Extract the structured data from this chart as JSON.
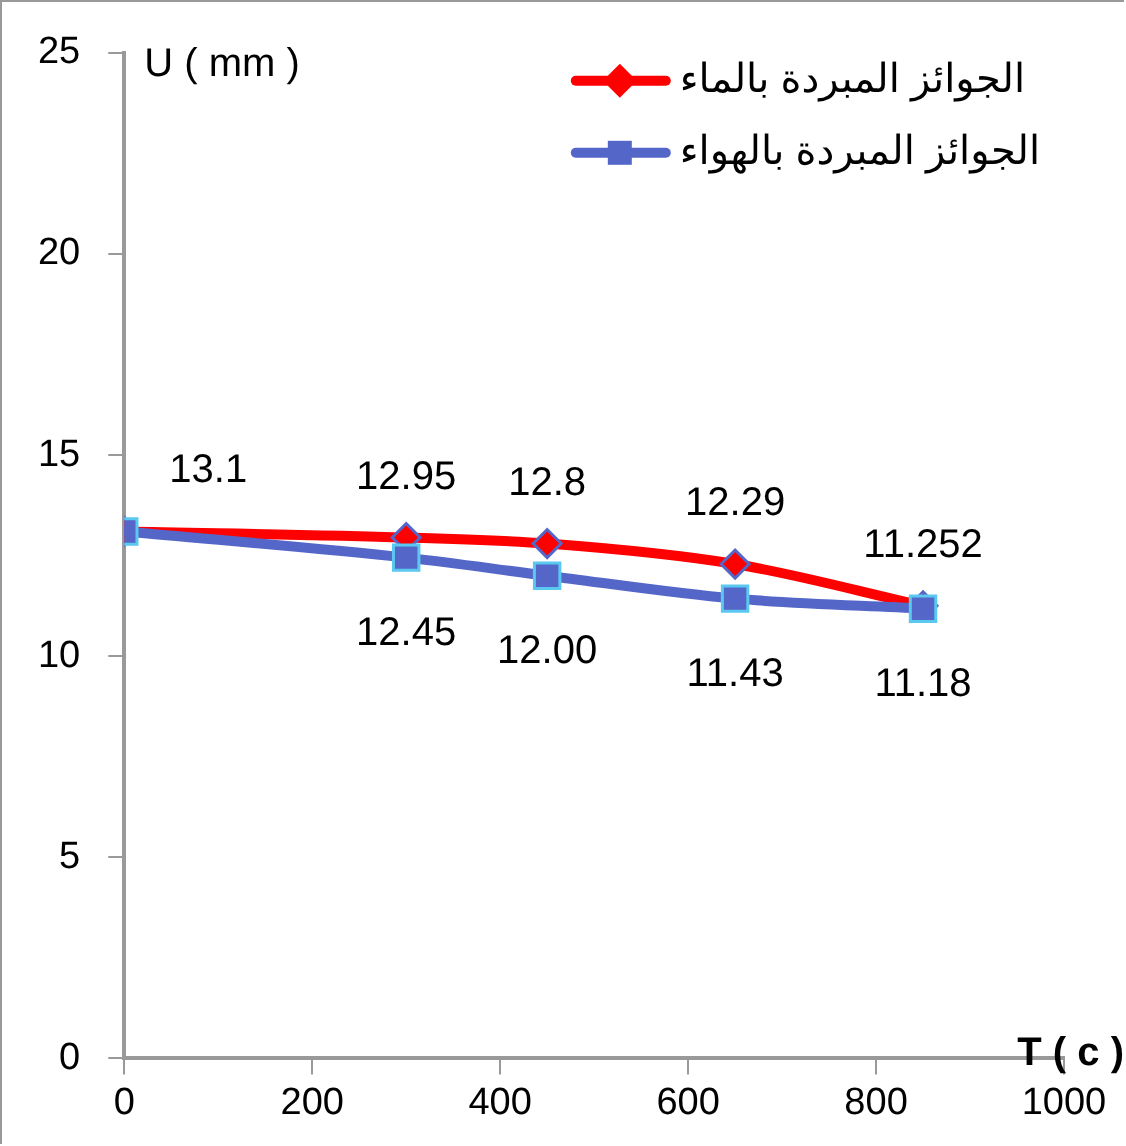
{
  "chart_data": {
    "type": "line",
    "xlabel": "T ( c )",
    "ylabel": "U ( mm )",
    "x": [
      0,
      300,
      450,
      650,
      850
    ],
    "series": [
      {
        "name": "الجوائز المبردة بالماء",
        "color": "#ff0000",
        "marker": "diamond",
        "values": [
          13.1,
          12.95,
          12.8,
          12.29,
          11.252
        ],
        "value_labels": [
          "13.1",
          "12.95",
          "12.8",
          "12.29",
          "11.252"
        ]
      },
      {
        "name": "الجوائز المبردة بالهواء",
        "color": "#5467c9",
        "marker": "square",
        "values": [
          13.1,
          12.45,
          12.0,
          11.43,
          11.18
        ],
        "value_labels": [
          null,
          "12.45",
          "12.00",
          "11.43",
          "11.18"
        ]
      }
    ],
    "xlim": [
      0,
      1000
    ],
    "xticks": [
      0,
      200,
      400,
      600,
      800,
      1000
    ],
    "ylim": [
      0,
      25
    ],
    "yticks": [
      0,
      5,
      10,
      15,
      20,
      25
    ],
    "grid": false,
    "legend": "top right"
  }
}
